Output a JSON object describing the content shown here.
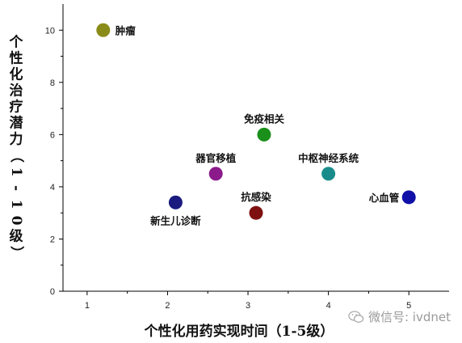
{
  "chart_data": {
    "type": "scatter",
    "xlabel": "个性化用药实现时间（1-5级）",
    "ylabel": "个性化治疗潜力（1-10级）",
    "xlim": [
      0.7,
      5.5
    ],
    "ylim": [
      0,
      11
    ],
    "xticks": [
      1,
      2,
      3,
      4,
      5
    ],
    "yticks": [
      0,
      2,
      4,
      6,
      8,
      10
    ],
    "grid": false,
    "points": [
      {
        "label": "肿瘤",
        "x": 1.2,
        "y": 10.0,
        "color": "#8b8b1a",
        "label_pos": "right"
      },
      {
        "label": "免疫相关",
        "x": 3.2,
        "y": 6.0,
        "color": "#1a8f1a",
        "label_pos": "above"
      },
      {
        "label": "器官移植",
        "x": 2.6,
        "y": 4.5,
        "color": "#8b1a8b",
        "label_pos": "above"
      },
      {
        "label": "中枢神经系统",
        "x": 4.0,
        "y": 4.5,
        "color": "#1a8b8b",
        "label_pos": "above"
      },
      {
        "label": "新生儿诊断",
        "x": 2.1,
        "y": 3.4,
        "color": "#1a1a7f",
        "label_pos": "below"
      },
      {
        "label": "抗感染",
        "x": 3.1,
        "y": 3.0,
        "color": "#7f1010",
        "label_pos": "above"
      },
      {
        "label": "心血管",
        "x": 5.0,
        "y": 3.6,
        "color": "#1010a8",
        "label_pos": "left"
      }
    ]
  },
  "watermark": {
    "text": "微信号: ivdnet",
    "icon": "wechat-icon"
  }
}
